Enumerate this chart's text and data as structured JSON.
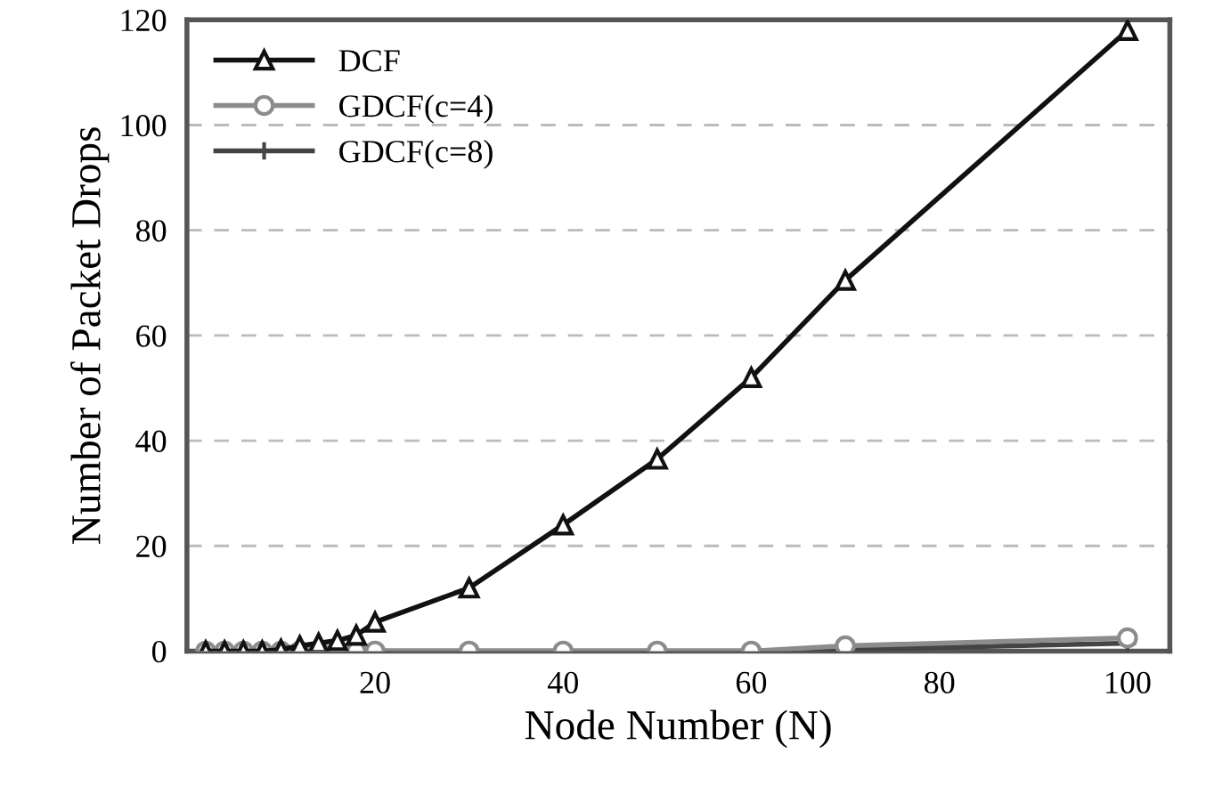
{
  "chart_data": {
    "type": "line",
    "xlabel": "Node Number (N)",
    "ylabel": "Number of Packet Drops",
    "x": [
      2,
      4,
      6,
      8,
      10,
      12,
      14,
      16,
      18,
      20,
      30,
      40,
      50,
      60,
      70,
      100
    ],
    "series": [
      {
        "name": "DCF",
        "color": "#111111",
        "marker": "triangle",
        "values": [
          0,
          0,
          0,
          0,
          0.3,
          1,
          1.5,
          2,
          3,
          5.5,
          12,
          24,
          36.5,
          52,
          70.5,
          118
        ]
      },
      {
        "name": "GDCF(c=4)",
        "color": "#8c8c8c",
        "marker": "circle",
        "values": [
          0,
          0,
          0,
          0,
          0,
          0,
          0,
          0,
          0,
          0,
          0,
          0,
          0,
          0,
          1,
          2.5
        ]
      },
      {
        "name": "GDCF(c=8)",
        "color": "#444444",
        "marker": "cross",
        "values": [
          0,
          0,
          0,
          0,
          0,
          0,
          0,
          0,
          0,
          0,
          0,
          0,
          0,
          0,
          0.3,
          1.5
        ]
      }
    ],
    "xlim": [
      0,
      104.5
    ],
    "xticks": [
      20,
      40,
      60,
      80,
      100
    ],
    "ylim": [
      0,
      120
    ],
    "yticks": [
      0,
      20,
      40,
      60,
      80,
      100,
      120
    ],
    "grid": "y",
    "legend": "top left"
  }
}
